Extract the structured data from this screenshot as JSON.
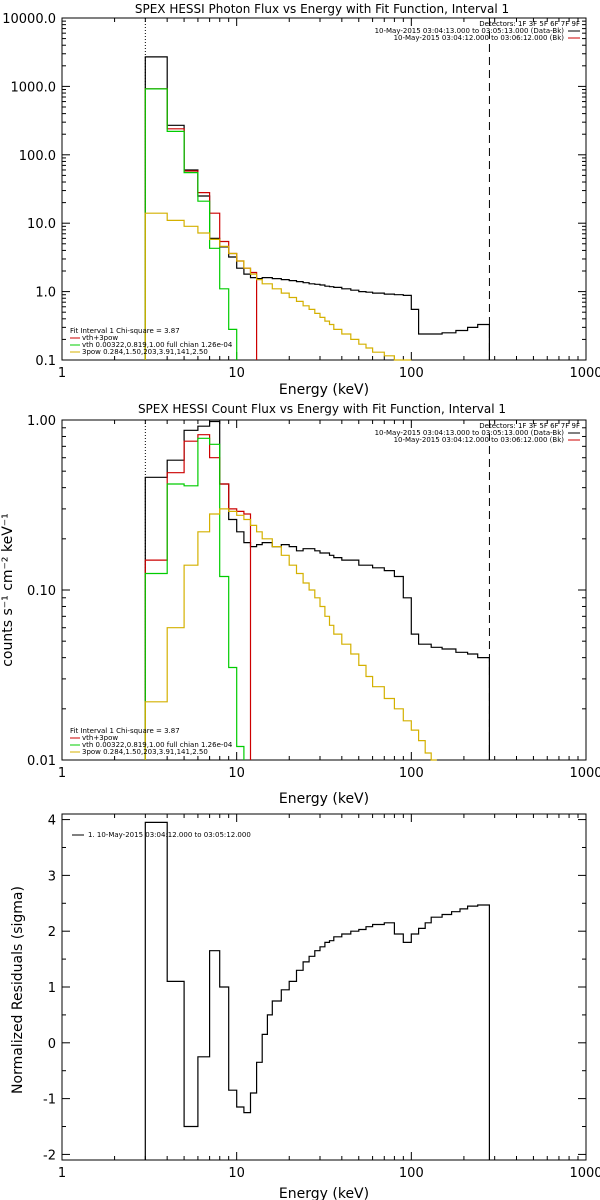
{
  "chart_data": [
    {
      "type": "line",
      "title": "SPEX HESSI Photon Flux vs Energy with Fit Function, Interval 1",
      "xlabel": "Energy (keV)",
      "ylabel": "",
      "xscale": "log",
      "yscale": "log",
      "xlim": [
        1,
        1000
      ],
      "ylim": [
        0.1,
        10000
      ],
      "xticks": [
        1,
        10,
        100,
        1000
      ],
      "xtick_labels": [
        "1",
        "10",
        "100",
        "1000"
      ],
      "yticks": [
        0.1,
        1,
        10,
        100,
        1000,
        10000
      ],
      "ytick_labels": [
        "0.1",
        "1.0",
        "10.0",
        "100.0",
        "1000.0",
        "10000.0"
      ],
      "vlines": [
        {
          "x": 3.0,
          "style": "dotted"
        },
        {
          "x": 280,
          "style": "dashed"
        }
      ],
      "legend_topright": [
        "Detectors: 1F 3F 5F 6F 7F 9F",
        "10-May-2015 03:04:13.000 to 03:05:13.000 (Data-Bk)",
        "10-May-2015 03:04:12.000 to 03:06:12.000 (Bk)"
      ],
      "legend_colors_topright": [
        "#000000",
        "#cc0000"
      ],
      "legend_bottomleft": [
        "Fit Interval 1    Chi-square = 3.87",
        "vth+3pow",
        "vth 0.00322,0.819,1.00  full chian 1.26e-04",
        "3pow 0.284,1.50,203,3.91,141,2.50"
      ],
      "legend_colors_bottomleft": [
        "#cc0000",
        "#00cc00",
        "#d4b000"
      ],
      "series": [
        {
          "name": "Data-Bk",
          "color": "#000000",
          "edges": [
            3.0,
            4.0,
            5.0,
            6.0,
            7.0,
            8.0,
            9.0,
            10.0,
            11.0,
            12.0,
            13.0,
            14.0,
            16.0,
            18.0,
            20.0,
            22.0,
            24.0,
            26.0,
            28.0,
            30.0,
            32.0,
            34.0,
            36.0,
            40.0,
            45.0,
            50.0,
            55.0,
            60.0,
            70.0,
            80.0,
            90.0,
            100.0,
            110.0,
            130.0,
            150.0,
            180.0,
            210.0,
            240.0,
            280.0
          ],
          "values": [
            2700,
            270,
            60,
            25,
            6,
            4.5,
            3.2,
            2.2,
            1.8,
            1.6,
            1.55,
            1.6,
            1.55,
            1.5,
            1.45,
            1.4,
            1.35,
            1.3,
            1.28,
            1.25,
            1.2,
            1.18,
            1.15,
            1.1,
            1.05,
            1.0,
            0.98,
            0.95,
            0.92,
            0.9,
            0.88,
            0.55,
            0.24,
            0.24,
            0.25,
            0.27,
            0.3,
            0.33
          ]
        },
        {
          "name": "vth+3pow",
          "color": "#cc0000",
          "edges": [
            3.0,
            4.0,
            5.0,
            6.0,
            7.0,
            8.0,
            9.0,
            10.0,
            11.0,
            12.0,
            13.0
          ],
          "values": [
            920,
            240,
            58,
            28,
            14,
            5.4,
            3.6,
            2.8,
            2.2,
            1.9
          ]
        },
        {
          "name": "vth",
          "color": "#00cc00",
          "edges": [
            3.0,
            4.0,
            5.0,
            6.0,
            7.0,
            8.0,
            9.0,
            10.0
          ],
          "values": [
            920,
            220,
            55,
            21,
            4.3,
            1.1,
            0.28
          ]
        },
        {
          "name": "3pow",
          "color": "#d4b000",
          "edges": [
            3.0,
            4.0,
            5.0,
            6.0,
            7.0,
            8.0,
            9.0,
            10.0,
            11.0,
            12.0,
            13.0,
            14.0,
            16.0,
            18.0,
            20.0,
            22.0,
            24.0,
            26.0,
            28.0,
            30.0,
            32.0,
            34.0,
            36.0,
            40.0,
            45.0,
            50.0,
            55.0,
            60.0,
            70.0,
            80.0,
            90.0,
            100.0
          ],
          "values": [
            14,
            11,
            9,
            7.2,
            5.8,
            4.6,
            3.6,
            2.8,
            2.2,
            1.8,
            1.5,
            1.3,
            1.1,
            0.95,
            0.82,
            0.72,
            0.62,
            0.55,
            0.48,
            0.42,
            0.37,
            0.33,
            0.28,
            0.24,
            0.2,
            0.17,
            0.15,
            0.13,
            0.115,
            0.1,
            0.09
          ]
        }
      ]
    },
    {
      "type": "line",
      "title": "SPEX HESSI Count Flux vs Energy with Fit Function, Interval 1",
      "xlabel": "Energy (keV)",
      "ylabel": "counts s⁻¹ cm⁻² keV⁻¹",
      "xscale": "log",
      "yscale": "log",
      "xlim": [
        1,
        1000
      ],
      "ylim": [
        0.01,
        1.0
      ],
      "xticks": [
        1,
        10,
        100,
        1000
      ],
      "xtick_labels": [
        "1",
        "10",
        "100",
        "1000"
      ],
      "yticks": [
        0.01,
        0.1,
        1.0
      ],
      "ytick_labels": [
        "0.01",
        "0.10",
        "1.00"
      ],
      "vlines": [
        {
          "x": 3.0,
          "style": "dotted"
        },
        {
          "x": 280,
          "style": "dashed"
        }
      ],
      "legend_topright": [
        "Detectors: 1F 3F 5F 6F 7F 9F",
        "10-May-2015 03:04:13.000 to 03:05:13.000 (Data-Bk)",
        "10-May-2015 03:04:12.000 to 03:06:12.000 (Bk)"
      ],
      "legend_colors_topright": [
        "#000000",
        "#cc0000"
      ],
      "legend_bottomleft": [
        "Fit Interval 1    Chi-square = 3.87",
        "vth+3pow",
        "vth 0.00322,0.819,1.00  full chian 1.26e-04",
        "3pow 0.284,1.50,203,3.91,141,2.50"
      ],
      "legend_colors_bottomleft": [
        "#cc0000",
        "#00cc00",
        "#d4b000"
      ],
      "series": [
        {
          "name": "Data-Bk",
          "color": "#000000",
          "edges": [
            3.0,
            4.0,
            5.0,
            6.0,
            7.0,
            8.0,
            9.0,
            10.0,
            11.0,
            12.0,
            13.0,
            14.0,
            16.0,
            18.0,
            20.0,
            22.0,
            24.0,
            26.0,
            28.0,
            30.0,
            32.0,
            34.0,
            36.0,
            40.0,
            45.0,
            50.0,
            55.0,
            60.0,
            70.0,
            80.0,
            90.0,
            100.0,
            110.0,
            130.0,
            150.0,
            180.0,
            210.0,
            240.0,
            280.0
          ],
          "values": [
            0.46,
            0.58,
            0.87,
            0.92,
            0.98,
            0.42,
            0.26,
            0.22,
            0.19,
            0.18,
            0.185,
            0.19,
            0.18,
            0.185,
            0.18,
            0.17,
            0.175,
            0.175,
            0.17,
            0.165,
            0.165,
            0.16,
            0.155,
            0.15,
            0.15,
            0.14,
            0.14,
            0.135,
            0.13,
            0.12,
            0.09,
            0.055,
            0.048,
            0.046,
            0.045,
            0.043,
            0.042,
            0.04
          ]
        },
        {
          "name": "vth+3pow",
          "color": "#cc0000",
          "edges": [
            3.0,
            4.0,
            5.0,
            6.0,
            7.0,
            8.0,
            9.0,
            10.0,
            11.0,
            12.0
          ],
          "values": [
            0.15,
            0.49,
            0.75,
            0.82,
            0.6,
            0.42,
            0.3,
            0.29,
            0.28
          ]
        },
        {
          "name": "vth",
          "color": "#00cc00",
          "edges": [
            3.0,
            4.0,
            5.0,
            6.0,
            7.0,
            8.0,
            9.0,
            10.0,
            11.0
          ],
          "values": [
            0.125,
            0.42,
            0.41,
            0.78,
            0.72,
            0.12,
            0.035,
            0.012
          ]
        },
        {
          "name": "3pow",
          "color": "#d4b000",
          "edges": [
            3.0,
            4.0,
            5.0,
            6.0,
            7.0,
            8.0,
            9.0,
            10.0,
            11.0,
            12.0,
            13.0,
            14.0,
            16.0,
            18.0,
            20.0,
            22.0,
            24.0,
            26.0,
            28.0,
            30.0,
            32.0,
            34.0,
            36.0,
            40.0,
            45.0,
            50.0,
            55.0,
            60.0,
            70.0,
            80.0,
            90.0,
            100.0,
            110.0,
            120.0,
            130.0,
            140.0
          ],
          "values": [
            0.022,
            0.06,
            0.14,
            0.22,
            0.28,
            0.3,
            0.29,
            0.275,
            0.26,
            0.24,
            0.22,
            0.2,
            0.18,
            0.16,
            0.14,
            0.125,
            0.11,
            0.1,
            0.09,
            0.08,
            0.07,
            0.062,
            0.055,
            0.048,
            0.042,
            0.036,
            0.031,
            0.027,
            0.023,
            0.02,
            0.017,
            0.015,
            0.013,
            0.011,
            0.01
          ]
        }
      ]
    },
    {
      "type": "line",
      "title": "",
      "xlabel": "Energy (keV)",
      "ylabel": "Normalized Residuals (sigma)",
      "xscale": "log",
      "yscale": "linear",
      "xlim": [
        1,
        1000
      ],
      "ylim": [
        -2.1,
        4.1
      ],
      "xticks": [
        1,
        10,
        100,
        1000
      ],
      "xtick_labels": [
        "1",
        "10",
        "100",
        "1000"
      ],
      "yticks": [
        -2,
        -1,
        0,
        1,
        2,
        3,
        4
      ],
      "ytick_labels": [
        "-2",
        "-1",
        "0",
        "1",
        "2",
        "3",
        "4"
      ],
      "legend_topleft": [
        "1. 10-May-2015 03:04:12.000 to 03:05:12.000"
      ],
      "series": [
        {
          "name": "1. 10-May-2015 03:04:12.000 to 03:05:12.000",
          "color": "#000000",
          "edges": [
            3.0,
            4.0,
            4.5,
            5.0,
            6.0,
            7.0,
            8.0,
            9.0,
            10.0,
            11.0,
            12.0,
            13.0,
            14.0,
            15.0,
            16.0,
            18.0,
            20.0,
            22.0,
            24.0,
            26.0,
            28.0,
            30.0,
            32.0,
            34.0,
            36.0,
            40.0,
            45.0,
            50.0,
            55.0,
            60.0,
            70.0,
            80.0,
            90.0,
            100.0,
            110.0,
            120.0,
            130.0,
            150.0,
            170.0,
            190.0,
            210.0,
            240.0,
            280.0
          ],
          "values": [
            3.95,
            1.1,
            1.1,
            -1.5,
            -0.25,
            1.65,
            1.0,
            -0.85,
            -1.15,
            -1.25,
            -0.9,
            -0.35,
            0.15,
            0.5,
            0.75,
            0.95,
            1.1,
            1.3,
            1.45,
            1.55,
            1.65,
            1.72,
            1.8,
            1.83,
            1.9,
            1.95,
            2.0,
            2.03,
            2.08,
            2.12,
            2.15,
            1.95,
            1.8,
            1.95,
            2.05,
            2.15,
            2.25,
            2.3,
            2.35,
            2.4,
            2.45,
            2.47
          ]
        }
      ]
    }
  ]
}
